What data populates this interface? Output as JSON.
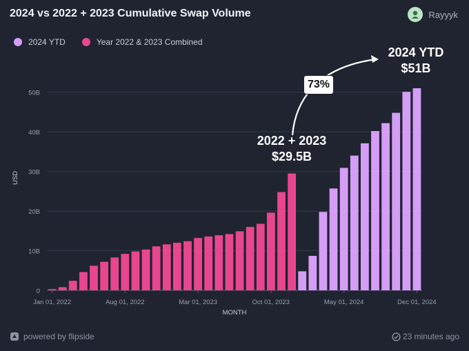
{
  "header": {
    "title": "2024 vs 2022 + 2023 Cumulative Swap Volume",
    "author": "Rayyyk"
  },
  "legend": [
    {
      "label": "2024 YTD",
      "color": "#d59df5"
    },
    {
      "label": "Year 2022 & 2023 Combined",
      "color": "#e8468f"
    }
  ],
  "annotations": {
    "growth_label": "73%",
    "left_label_line1": "2022 + 2023",
    "left_label_line2": "$29.5B",
    "right_label_line1": "2024 YTD",
    "right_label_line2": "$51B"
  },
  "footer": {
    "powered_by": "powered by flipside",
    "updated": "23 minutes ago"
  },
  "chart_data": {
    "type": "bar",
    "title": "2024 vs 2022 + 2023 Cumulative Swap Volume",
    "xlabel": "MONTH",
    "ylabel": "USD",
    "ylim": [
      0,
      55
    ],
    "y_unit": "billion USD",
    "y_ticks": [
      "0",
      "10B",
      "20B",
      "30B",
      "40B",
      "50B"
    ],
    "x_ticks": [
      "Jan 01, 2022",
      "Aug 01, 2022",
      "Mar 01, 2023",
      "Oct 01, 2023",
      "May 01, 2024",
      "Dec 01, 2024"
    ],
    "grid": true,
    "legend_position": "top-left",
    "series": [
      {
        "name": "Year 2022 & 2023 Combined",
        "color": "#e8468f",
        "start_month_index": 0,
        "values": [
          0.3,
          0.8,
          2.4,
          4.6,
          6.2,
          7.2,
          8.3,
          9.2,
          9.8,
          10.3,
          11.1,
          11.6,
          12.0,
          12.4,
          13.2,
          13.6,
          13.9,
          14.2,
          14.9,
          16.0,
          16.8,
          19.6,
          24.8,
          29.5
        ]
      },
      {
        "name": "2024 YTD",
        "color": "#d59df5",
        "start_month_index": 24,
        "values": [
          4.8,
          8.7,
          19.8,
          25.7,
          30.9,
          34.0,
          37.1,
          40.2,
          42.2,
          44.8,
          50.1,
          51.0
        ]
      }
    ]
  }
}
